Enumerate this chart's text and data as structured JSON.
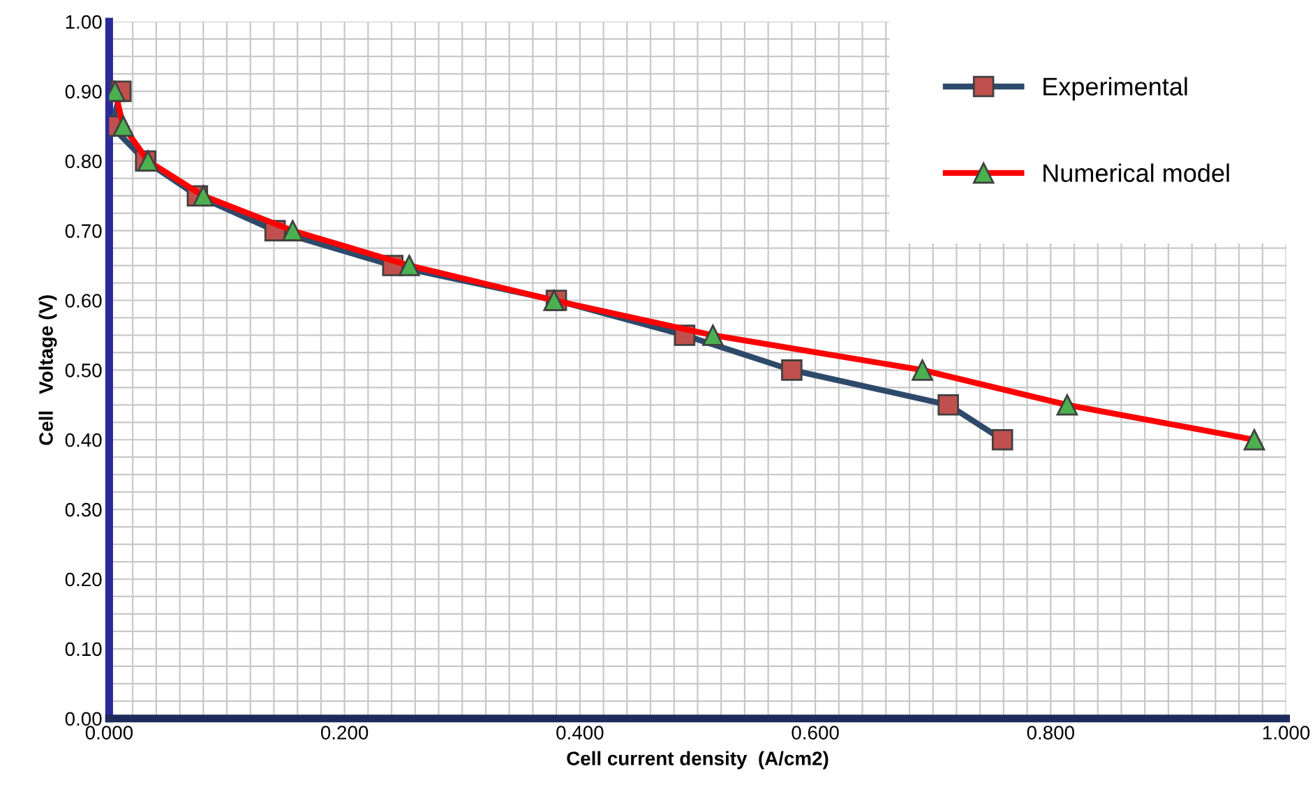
{
  "chart_data": {
    "type": "line",
    "xlabel": "Cell current density  (A/cm2)",
    "ylabel": "Cell   Voltage (V)",
    "xlim": [
      0,
      1
    ],
    "ylim": [
      0,
      1
    ],
    "xticks": [
      {
        "value": 0,
        "label": "0.000"
      },
      {
        "value": 0.2,
        "label": "0.200"
      },
      {
        "value": 0.4,
        "label": "0.400"
      },
      {
        "value": 0.6,
        "label": "0.600"
      },
      {
        "value": 0.8,
        "label": "0.800"
      },
      {
        "value": 1,
        "label": "1.000"
      }
    ],
    "yticks": [
      {
        "value": 0,
        "label": "0.00"
      },
      {
        "value": 0.1,
        "label": "0.10"
      },
      {
        "value": 0.2,
        "label": "0.20"
      },
      {
        "value": 0.3,
        "label": "0.30"
      },
      {
        "value": 0.4,
        "label": "0.40"
      },
      {
        "value": 0.5,
        "label": "0.50"
      },
      {
        "value": 0.6,
        "label": "0.60"
      },
      {
        "value": 0.7,
        "label": "0.70"
      },
      {
        "value": 0.8,
        "label": "0.80"
      },
      {
        "value": 0.9,
        "label": "0.90"
      },
      {
        "value": 1,
        "label": "1.00"
      }
    ],
    "grid": true,
    "legend": "top right",
    "series": [
      {
        "name": "Experimental",
        "color": "#2e4a6b",
        "marker": "square",
        "x": [
          0.01,
          0.002,
          0.031,
          0.075,
          0.141,
          0.241,
          0.38,
          0.489,
          0.58,
          0.713,
          0.759
        ],
        "values": [
          0.9,
          0.85,
          0.8,
          0.75,
          0.7,
          0.65,
          0.6,
          0.55,
          0.5,
          0.45,
          0.4
        ]
      },
      {
        "name": "Numerical model",
        "color": "#ff0000",
        "marker": "triangle",
        "x": [
          0.005,
          0.012,
          0.033,
          0.08,
          0.156,
          0.255,
          0.378,
          0.513,
          0.691,
          0.814,
          0.973
        ],
        "values": [
          0.9,
          0.85,
          0.8,
          0.75,
          0.7,
          0.65,
          0.6,
          0.55,
          0.5,
          0.45,
          0.4
        ]
      }
    ]
  }
}
